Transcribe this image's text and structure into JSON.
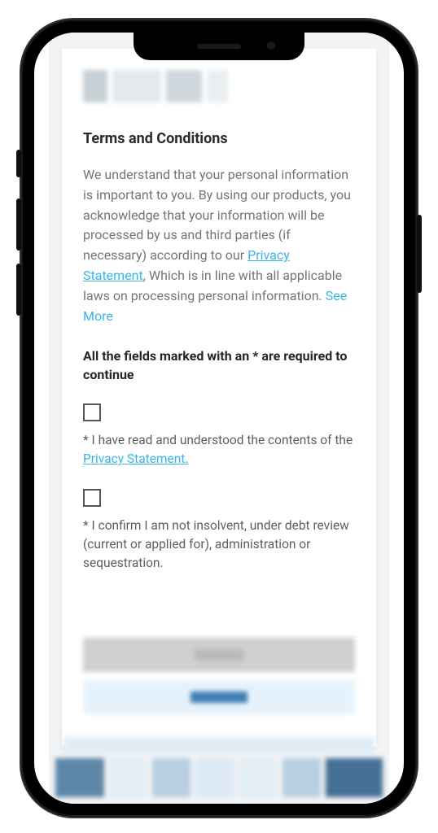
{
  "colors": {
    "link": "#37b6e6",
    "heading": "#2b2b2b",
    "body": "#707579",
    "muted": "#5b5f62",
    "card_bg": "#ffffff",
    "page_bg": "#f2f3f4",
    "phone_bg": "#000000"
  },
  "terms": {
    "heading": "Terms and Conditions",
    "body_pre_link": "We understand that your personal information is important to you. By using our products, you acknowledge that your information will be processed by us and third parties (if necessary) according to our ",
    "privacy_link_label": "Privacy Statement",
    "body_post_link": ", Which is in line with all applicable laws on processing personal information. ",
    "see_more_label": "See More",
    "required_note": "All the fields marked with an * are required to continue",
    "consents": [
      {
        "checked": false,
        "text_pre": "* I have read and understood the contents of the ",
        "link_label": "Privacy Statement.",
        "text_post": ""
      },
      {
        "checked": false,
        "text_pre": "* I confirm I am not insolvent, under debt review (current or applied for), administration or sequestration.",
        "link_label": "",
        "text_post": ""
      }
    ]
  }
}
